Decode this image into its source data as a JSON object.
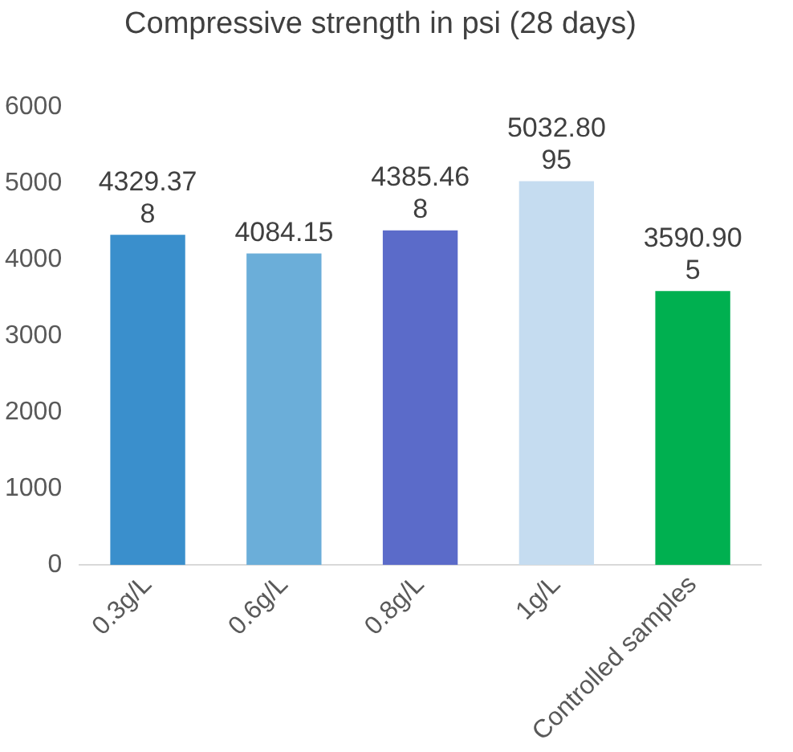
{
  "chart_data": {
    "type": "bar",
    "title": "Compressive strength in psi (28 days)",
    "categories": [
      "0.3g/L",
      "0.6g/L",
      "0.8g/L",
      "1g/L",
      "Controlled samples"
    ],
    "values": [
      4329.378,
      4084.15,
      4385.468,
      5032.8095,
      3590.905
    ],
    "colors": [
      "#3a8fcc",
      "#6baed9",
      "#5b6bc9",
      "#c5dcf0",
      "#00b050"
    ],
    "ylim": [
      0,
      6000
    ],
    "yticks": [
      0,
      1000,
      2000,
      3000,
      4000,
      5000,
      6000
    ],
    "grid": false,
    "legend": false,
    "data_labels": true
  }
}
